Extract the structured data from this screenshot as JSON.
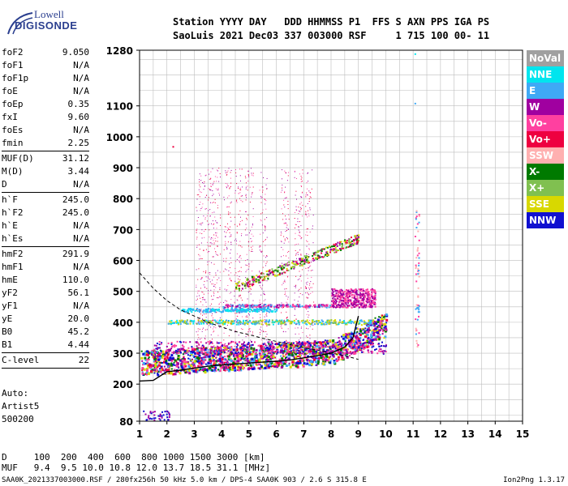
{
  "logo": {
    "line1": "Lowell",
    "line2": "DIGISONDE"
  },
  "header": {
    "line1": "Station YYYY DAY   DDD HHMMSS P1  FFS S AXN PPS IGA PS",
    "line2": "SaoLuis 2021 Dec03 337 003000 RSF     1 715 100 00- 11"
  },
  "params_group1": [
    {
      "name": "foF2",
      "value": "9.050"
    },
    {
      "name": "foF1",
      "value": "N/A"
    },
    {
      "name": "foF1p",
      "value": "N/A"
    },
    {
      "name": "foE",
      "value": "N/A"
    },
    {
      "name": "foEp",
      "value": "0.35"
    },
    {
      "name": "fxI",
      "value": "9.60"
    },
    {
      "name": "foEs",
      "value": "N/A"
    },
    {
      "name": "fmin",
      "value": "2.25"
    }
  ],
  "params_group2": [
    {
      "name": "MUF(D)",
      "value": "31.12"
    },
    {
      "name": "M(D)",
      "value": "3.44"
    },
    {
      "name": "D",
      "value": "N/A"
    }
  ],
  "params_group3": [
    {
      "name": "h`F",
      "value": "245.0"
    },
    {
      "name": "h`F2",
      "value": "245.0"
    },
    {
      "name": "h`E",
      "value": "N/A"
    },
    {
      "name": "h`Es",
      "value": "N/A"
    }
  ],
  "params_group4": [
    {
      "name": "hmF2",
      "value": "291.9"
    },
    {
      "name": "hmF1",
      "value": "N/A"
    },
    {
      "name": "hmE",
      "value": "110.0"
    },
    {
      "name": "yF2",
      "value": "56.1"
    },
    {
      "name": "yF1",
      "value": "N/A"
    },
    {
      "name": "yE",
      "value": "20.0"
    },
    {
      "name": "B0",
      "value": "45.2"
    },
    {
      "name": "B1",
      "value": "4.44"
    }
  ],
  "params_group5": [
    {
      "name": "C-level",
      "value": "22"
    }
  ],
  "auto": {
    "line1": "Auto:",
    "line2": "Artist5",
    "line3": "500200"
  },
  "legend": [
    {
      "label": "NoVal",
      "color": "#a0a0a0"
    },
    {
      "label": "NNE",
      "color": "#00e5ee"
    },
    {
      "label": "E",
      "color": "#3fa9f5"
    },
    {
      "label": "W",
      "color": "#a000a0"
    },
    {
      "label": "Vo-",
      "color": "#ff40a0"
    },
    {
      "label": "Vo+",
      "color": "#ee0040"
    },
    {
      "label": "SSW",
      "color": "#ffb0b0"
    },
    {
      "label": "X-",
      "color": "#007a00"
    },
    {
      "label": "X+",
      "color": "#80c050"
    },
    {
      "label": "SSE",
      "color": "#d8d800"
    },
    {
      "label": "NNW",
      "color": "#1010d0"
    }
  ],
  "dmuf": {
    "d_line": "D     100  200  400  600  800 1000 1500 3000 [km]",
    "muf_line": "MUF   9.4  9.5 10.0 10.8 12.0 13.7 18.5 31.1 [MHz]"
  },
  "footer": "SAA0K_2021337003000.RSF / 280fx256h 50 kHz 5.0 km / DPS-4 SAA0K 903 / 2.6 S 315.8 E",
  "version": "Ion2Png 1.3.17",
  "chart_data": {
    "type": "scatter",
    "x_ticks": [
      1,
      2,
      3,
      4,
      5,
      6,
      7,
      8,
      9,
      10,
      11,
      12,
      13,
      14,
      15
    ],
    "y_ticks": [
      80,
      200,
      300,
      400,
      500,
      600,
      700,
      800,
      900,
      1000,
      1100,
      1280
    ],
    "xlim": [
      1,
      15
    ],
    "ylim": [
      80,
      1280
    ],
    "grid": true,
    "legend_position": "right",
    "trace_x": [
      1.0,
      1.5,
      2.0,
      2.5,
      3.0,
      3.5,
      4.0,
      4.5,
      5.0,
      5.5,
      6.0,
      6.5,
      7.0,
      7.5,
      8.0,
      8.5,
      8.8,
      9.0
    ],
    "trace_y": [
      210,
      212,
      240,
      245,
      252,
      258,
      262,
      265,
      268,
      271,
      274,
      278,
      285,
      292,
      300,
      320,
      350,
      420
    ],
    "profile_x": [
      1.0,
      1.5,
      2.0,
      2.5,
      3.0,
      3.5,
      4.0,
      4.5,
      5.0,
      5.5,
      6.0,
      6.5,
      7.0,
      7.5,
      8.0,
      8.5,
      9.0
    ],
    "profile_y": [
      560,
      510,
      470,
      440,
      420,
      400,
      385,
      370,
      360,
      348,
      338,
      328,
      318,
      310,
      300,
      292,
      280
    ]
  }
}
